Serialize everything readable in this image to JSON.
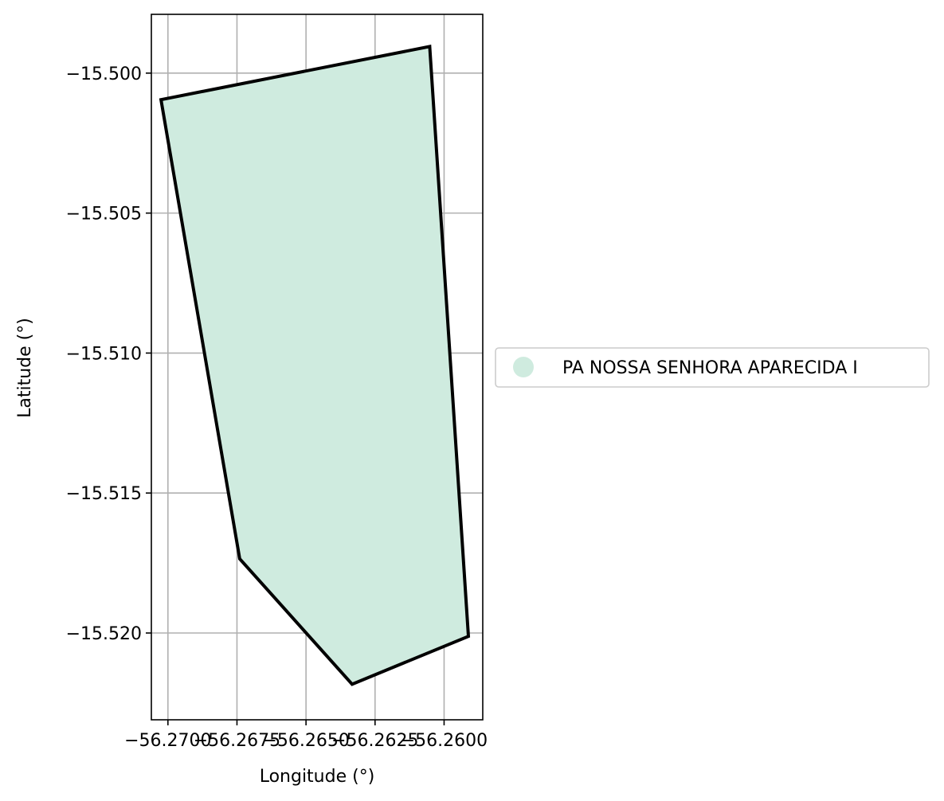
{
  "chart_data": {
    "type": "map",
    "xlabel": "Longitude (°)",
    "ylabel": "Latitude (°)",
    "xlim": [
      -56.2706,
      -56.2586
    ],
    "ylim": [
      -15.5231,
      -15.4979
    ],
    "grid": true,
    "legend_position": "right-center",
    "x_ticks": [
      {
        "value": -56.27,
        "label": "−56.2700"
      },
      {
        "value": -56.2675,
        "label": "−56.2675"
      },
      {
        "value": -56.265,
        "label": "−56.2650"
      },
      {
        "value": -56.2625,
        "label": "−56.2625"
      },
      {
        "value": -56.26,
        "label": "−56.2600"
      }
    ],
    "y_ticks": [
      {
        "value": -15.5,
        "label": "−15.500"
      },
      {
        "value": -15.505,
        "label": "−15.505"
      },
      {
        "value": -15.51,
        "label": "−15.510"
      },
      {
        "value": -15.515,
        "label": "−15.515"
      },
      {
        "value": -15.52,
        "label": "−15.520"
      }
    ],
    "series": [
      {
        "name": "PA NOSSA SENHORA APARECIDA I",
        "fill_color": "#cfebdf",
        "edge_color": "#000000",
        "polygon": [
          [
            -56.27025,
            -15.50095
          ],
          [
            -56.26052,
            -15.49905
          ],
          [
            -56.25912,
            -15.52012
          ],
          [
            -56.26333,
            -15.52183
          ],
          [
            -56.2674,
            -15.51735
          ],
          [
            -56.27025,
            -15.50095
          ]
        ]
      }
    ]
  }
}
